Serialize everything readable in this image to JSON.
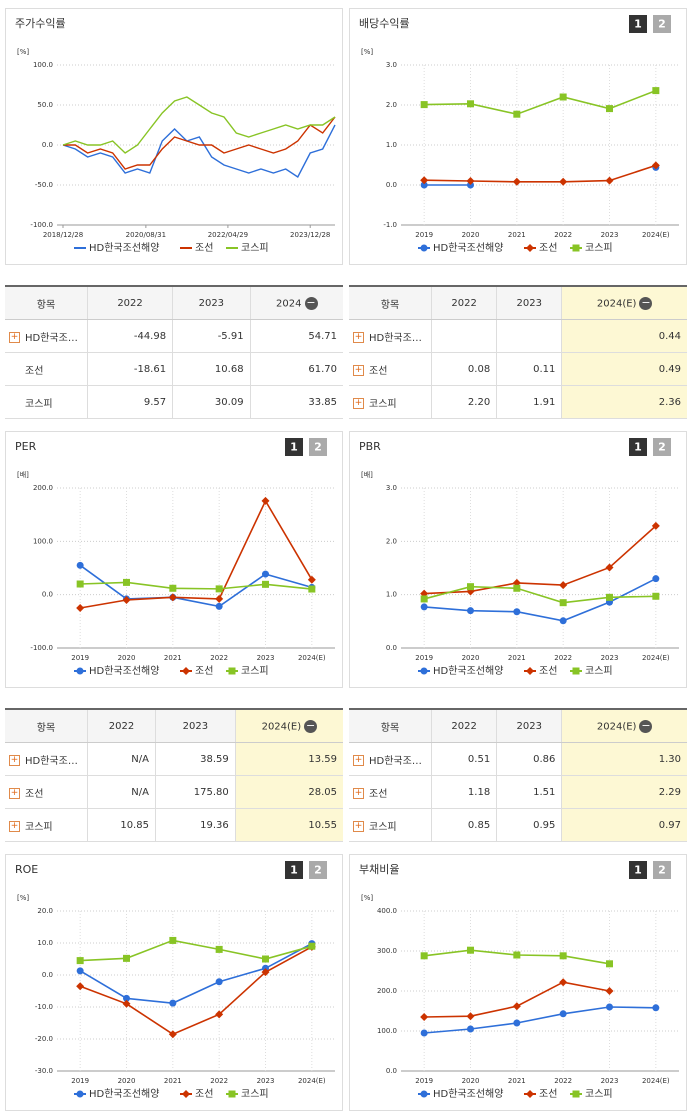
{
  "chart_data": [
    {
      "type": "line",
      "title": "주가수익률",
      "unit": "[%]",
      "x": [
        "2018/12/28",
        "2019/03/29",
        "2019/06/28",
        "2019/09/30",
        "2019/12/30",
        "2020/03/31",
        "2020/06/30",
        "2020/09/29",
        "2020/12/30",
        "2021/03/31",
        "2021/06/30",
        "2021/09/30",
        "2021/12/30",
        "2022/03/31",
        "2022/06/30",
        "2022/09/30",
        "2022/12/29",
        "2023/03/31",
        "2023/06/30",
        "2023/09/27",
        "2023/12/28",
        "2024/03/29",
        "2024/06/28"
      ],
      "xlim": [
        "2018/12/28",
        "2024/06/28"
      ],
      "xticks": [
        "2018/12/28",
        "2020/08/31",
        "2022/04/29",
        "2023/12/28"
      ],
      "ylim": [
        -100,
        100
      ],
      "yticks": [
        {
          "value": -100,
          "label": "-100.0"
        },
        {
          "value": -50,
          "label": "-50.0"
        },
        {
          "value": 0,
          "label": "0.0"
        },
        {
          "value": 50,
          "label": "50.0"
        },
        {
          "value": 100,
          "label": "100.0"
        }
      ],
      "markers": false,
      "series": [
        {
          "name": "HD한국조선해양",
          "color": "#2e6fd9",
          "values": [
            0,
            -5,
            -15,
            -10,
            -15,
            -35,
            -30,
            -35,
            5,
            20,
            5,
            10,
            -15,
            -25,
            -30,
            -35,
            -30,
            -35,
            -30,
            -40,
            -10,
            -5,
            25
          ]
        },
        {
          "name": "조선",
          "color": "#cc3300",
          "values": [
            0,
            0,
            -10,
            -5,
            -10,
            -30,
            -25,
            -25,
            -5,
            10,
            5,
            0,
            0,
            -10,
            -5,
            0,
            -5,
            -10,
            -5,
            5,
            25,
            15,
            35
          ]
        },
        {
          "name": "코스피",
          "color": "#88c425",
          "values": [
            0,
            5,
            0,
            0,
            5,
            -10,
            0,
            20,
            40,
            55,
            60,
            50,
            40,
            35,
            15,
            10,
            15,
            20,
            25,
            20,
            25,
            25,
            35
          ]
        }
      ]
    },
    {
      "type": "line",
      "title": "배당수익률",
      "unit": "[%]",
      "tabs": [
        "1",
        "2"
      ],
      "markers": true,
      "categories": [
        "2019",
        "2020",
        "2021",
        "2022",
        "2023",
        "2024(E)"
      ],
      "ylim": [
        -1,
        3
      ],
      "yticks": [
        {
          "value": -1,
          "label": "-1.0"
        },
        {
          "value": 0,
          "label": "0.0"
        },
        {
          "value": 1,
          "label": "1.0"
        },
        {
          "value": 2,
          "label": "2.0"
        },
        {
          "value": 3,
          "label": "3.0"
        }
      ],
      "series": [
        {
          "name": "HD한국조선해양",
          "color": "#2e6fd9",
          "values": [
            0,
            0,
            null,
            null,
            null,
            0.44
          ]
        },
        {
          "name": "조선",
          "color": "#cc3300",
          "values": [
            0.12,
            0.1,
            0.08,
            0.08,
            0.11,
            0.49
          ]
        },
        {
          "name": "코스피",
          "color": "#88c425",
          "values": [
            2.01,
            2.03,
            1.77,
            2.2,
            1.91,
            2.36
          ]
        }
      ]
    },
    {
      "type": "line",
      "title": "PER",
      "unit": "[배]",
      "tabs": [
        "1",
        "2"
      ],
      "markers": true,
      "categories": [
        "2019",
        "2020",
        "2021",
        "2022",
        "2023",
        "2024(E)"
      ],
      "ylim": [
        -100,
        200
      ],
      "yticks": [
        {
          "value": -100,
          "label": "-100.0"
        },
        {
          "value": 0,
          "label": "0.0"
        },
        {
          "value": 100,
          "label": "100.0"
        },
        {
          "value": 200,
          "label": "200.0"
        }
      ],
      "series": [
        {
          "name": "HD한국조선해양",
          "color": "#2e6fd9",
          "values": [
            55,
            -8,
            -5,
            -22,
            38.59,
            13.59
          ]
        },
        {
          "name": "조선",
          "color": "#cc3300",
          "values": [
            -25,
            -10,
            -5,
            -8,
            175.8,
            28.05
          ]
        },
        {
          "name": "코스피",
          "color": "#88c425",
          "values": [
            20,
            23,
            12,
            10.85,
            19.36,
            10.55
          ]
        }
      ]
    },
    {
      "type": "line",
      "title": "PBR",
      "unit": "[배]",
      "tabs": [
        "1",
        "2"
      ],
      "markers": true,
      "categories": [
        "2019",
        "2020",
        "2021",
        "2022",
        "2023",
        "2024(E)"
      ],
      "ylim": [
        0,
        3
      ],
      "yticks": [
        {
          "value": 0,
          "label": "0.0"
        },
        {
          "value": 1,
          "label": "1.0"
        },
        {
          "value": 2,
          "label": "2.0"
        },
        {
          "value": 3,
          "label": "3.0"
        }
      ],
      "series": [
        {
          "name": "HD한국조선해양",
          "color": "#2e6fd9",
          "values": [
            0.77,
            0.7,
            0.68,
            0.51,
            0.86,
            1.3
          ]
        },
        {
          "name": "조선",
          "color": "#cc3300",
          "values": [
            1.02,
            1.06,
            1.22,
            1.18,
            1.51,
            2.29
          ]
        },
        {
          "name": "코스피",
          "color": "#88c425",
          "values": [
            0.92,
            1.15,
            1.12,
            0.85,
            0.95,
            0.97
          ]
        }
      ]
    },
    {
      "type": "line",
      "title": "ROE",
      "unit": "[%]",
      "tabs": [
        "1",
        "2"
      ],
      "markers": true,
      "categories": [
        "2019",
        "2020",
        "2021",
        "2022",
        "2023",
        "2024(E)"
      ],
      "ylim": [
        -30,
        20
      ],
      "yticks": [
        {
          "value": -30,
          "label": "-30.0"
        },
        {
          "value": -20,
          "label": "-20.0"
        },
        {
          "value": -10,
          "label": "-10.0"
        },
        {
          "value": 0,
          "label": "0.0"
        },
        {
          "value": 10,
          "label": "10.0"
        },
        {
          "value": 20,
          "label": "20.0"
        }
      ],
      "series": [
        {
          "name": "HD한국조선해양",
          "color": "#2e6fd9",
          "values": [
            1.3,
            -7.3,
            -8.8,
            -2.1,
            2.1,
            9.8
          ]
        },
        {
          "name": "조선",
          "color": "#cc3300",
          "values": [
            -3.5,
            -9,
            -18.5,
            -12.3,
            0.9,
            8.8
          ]
        },
        {
          "name": "코스피",
          "color": "#88c425",
          "values": [
            4.5,
            5.2,
            10.8,
            8,
            5,
            9
          ]
        }
      ]
    },
    {
      "type": "line",
      "title": "부채비율",
      "unit": "[%]",
      "tabs": [
        "1",
        "2"
      ],
      "markers": true,
      "categories": [
        "2019",
        "2020",
        "2021",
        "2022",
        "2023",
        "2024(E)"
      ],
      "ylim": [
        0,
        400
      ],
      "yticks": [
        {
          "value": 0,
          "label": "0.0"
        },
        {
          "value": 100,
          "label": "100.0"
        },
        {
          "value": 200,
          "label": "200.0"
        },
        {
          "value": 300,
          "label": "300.0"
        },
        {
          "value": 400,
          "label": "400.0"
        }
      ],
      "series": [
        {
          "name": "HD한국조선해양",
          "color": "#2e6fd9",
          "values": [
            95,
            105,
            120,
            143,
            160,
            158
          ]
        },
        {
          "name": "조선",
          "color": "#cc3300",
          "values": [
            135,
            137,
            162,
            222,
            200,
            null
          ]
        },
        {
          "name": "코스피",
          "color": "#88c425",
          "values": [
            288,
            302,
            290,
            288,
            268,
            null
          ]
        }
      ]
    }
  ],
  "tables": [
    {
      "header": [
        "항목",
        "2022",
        "2023",
        "2024"
      ],
      "highlight_last": false,
      "rows": [
        {
          "label": "HD한국조…",
          "expandable": true,
          "cells": [
            "-44.98",
            "-5.91",
            "54.71"
          ]
        },
        {
          "label": "조선",
          "expandable": false,
          "cells": [
            "-18.61",
            "10.68",
            "61.70"
          ]
        },
        {
          "label": "코스피",
          "expandable": false,
          "cells": [
            "9.57",
            "30.09",
            "33.85"
          ]
        }
      ]
    },
    {
      "header": [
        "항목",
        "2022",
        "2023",
        "2024(E)"
      ],
      "highlight_last": true,
      "rows": [
        {
          "label": "HD한국조…",
          "expandable": true,
          "cells": [
            null,
            null,
            "0.44"
          ]
        },
        {
          "label": "조선",
          "expandable": true,
          "cells": [
            "0.08",
            "0.11",
            "0.49"
          ]
        },
        {
          "label": "코스피",
          "expandable": true,
          "cells": [
            "2.20",
            "1.91",
            "2.36"
          ]
        }
      ]
    },
    {
      "header": [
        "항목",
        "2022",
        "2023",
        "2024(E)"
      ],
      "highlight_last": true,
      "rows": [
        {
          "label": "HD한국조…",
          "expandable": true,
          "cells": [
            "N/A",
            "38.59",
            "13.59"
          ]
        },
        {
          "label": "조선",
          "expandable": true,
          "cells": [
            "N/A",
            "175.80",
            "28.05"
          ]
        },
        {
          "label": "코스피",
          "expandable": true,
          "cells": [
            "10.85",
            "19.36",
            "10.55"
          ]
        }
      ]
    },
    {
      "header": [
        "항목",
        "2022",
        "2023",
        "2024(E)"
      ],
      "highlight_last": true,
      "rows": [
        {
          "label": "HD한국조…",
          "expandable": true,
          "cells": [
            "0.51",
            "0.86",
            "1.30"
          ]
        },
        {
          "label": "조선",
          "expandable": true,
          "cells": [
            "1.18",
            "1.51",
            "2.29"
          ]
        },
        {
          "label": "코스피",
          "expandable": true,
          "cells": [
            "0.85",
            "0.95",
            "0.97"
          ]
        }
      ]
    }
  ]
}
